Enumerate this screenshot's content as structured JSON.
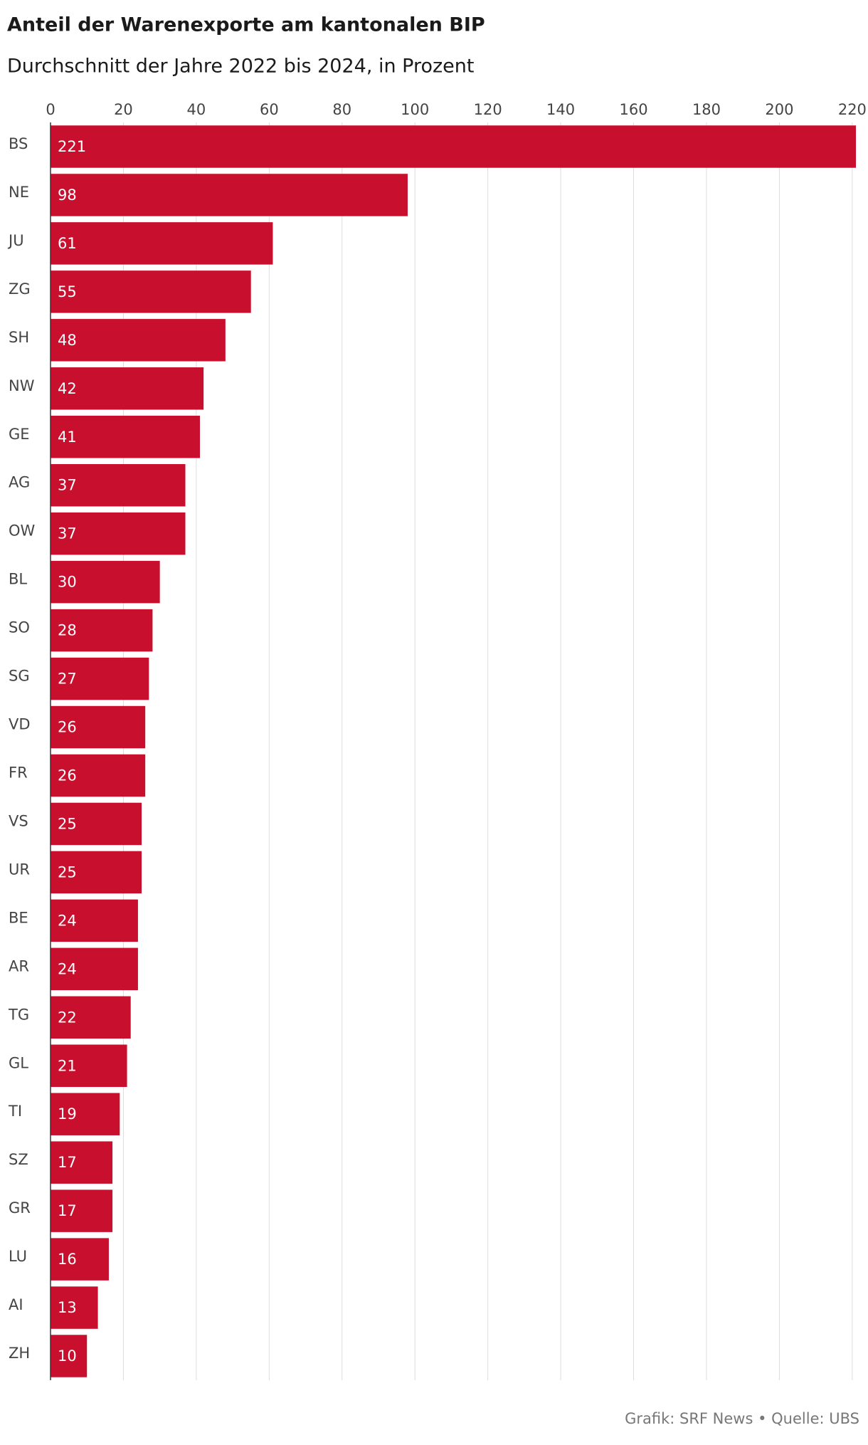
{
  "chart_data": {
    "type": "bar",
    "orientation": "horizontal",
    "title": "Anteil der Warenexporte am kantonalen BIP",
    "subtitle": "Durchschnitt der Jahre 2022 bis 2024, in Prozent",
    "source": "Grafik: SRF News • Quelle: UBS",
    "categories": [
      "BS",
      "NE",
      "JU",
      "ZG",
      "SH",
      "NW",
      "GE",
      "AG",
      "OW",
      "BL",
      "SO",
      "SG",
      "VD",
      "FR",
      "VS",
      "UR",
      "BE",
      "AR",
      "TG",
      "GL",
      "TI",
      "SZ",
      "GR",
      "LU",
      "AI",
      "ZH"
    ],
    "values": [
      221,
      98,
      61,
      55,
      48,
      42,
      41,
      37,
      37,
      30,
      28,
      27,
      26,
      26,
      25,
      25,
      24,
      24,
      22,
      21,
      19,
      17,
      17,
      16,
      13,
      10
    ],
    "color": "#c8102e",
    "xlim": [
      0,
      221
    ],
    "xticks": [
      0,
      20,
      40,
      60,
      80,
      100,
      120,
      140,
      160,
      180,
      200,
      220
    ],
    "grid": true
  }
}
